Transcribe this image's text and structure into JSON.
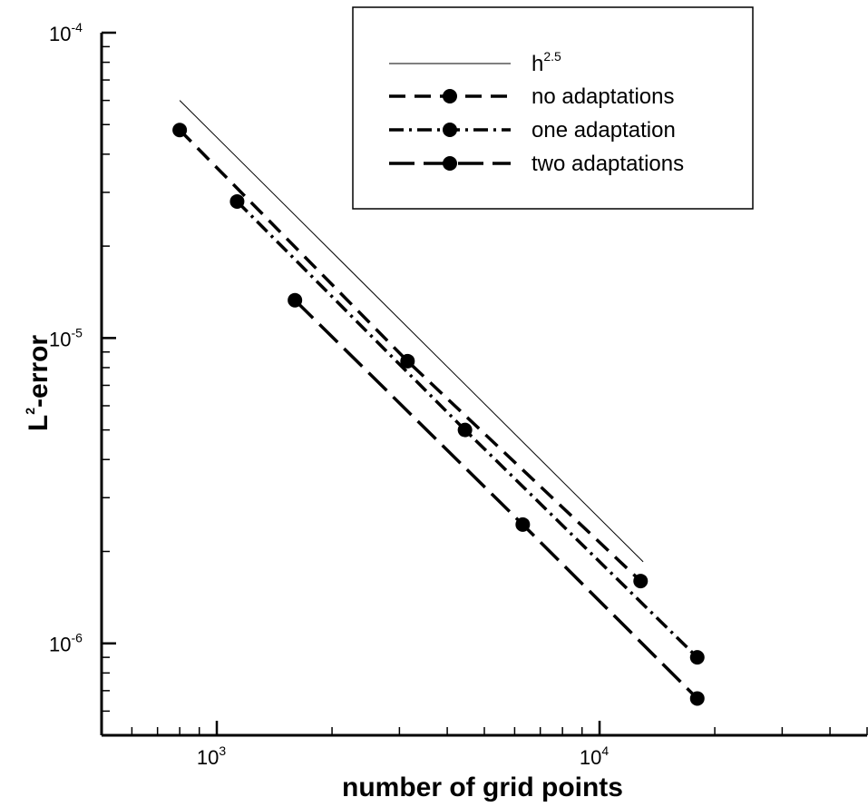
{
  "chart_data": {
    "type": "line",
    "x_scale": "log",
    "y_scale": "log",
    "xlim": [
      500,
      50000
    ],
    "ylim": [
      5e-07,
      0.0001
    ],
    "xlabel": {
      "base": "number of grid points"
    },
    "ylabel": {
      "base": "L",
      "sup": "2",
      "rest": "-error"
    },
    "x_ticks": [
      {
        "value": 1000,
        "base": "10",
        "exp": "3"
      },
      {
        "value": 10000,
        "base": "10",
        "exp": "4"
      }
    ],
    "y_ticks": [
      {
        "value": 0.0001,
        "base": "10",
        "exp": "-4"
      },
      {
        "value": 1e-05,
        "base": "10",
        "exp": "-5"
      },
      {
        "value": 1e-06,
        "base": "10",
        "exp": "-6"
      }
    ],
    "grid": false,
    "legend_position": "top-right",
    "reference_line": {
      "name": "h",
      "name_sup": "2.5",
      "x": [
        800,
        13000
      ],
      "y": [
        6e-05,
        1.85e-06
      ],
      "style": "solid"
    },
    "series": [
      {
        "name": "no adaptations",
        "style": "dashed",
        "x": [
          800,
          3150,
          12800
        ],
        "y": [
          4.8e-05,
          8.4e-06,
          1.6e-06
        ]
      },
      {
        "name": "one adaptation",
        "style": "dashdot",
        "x": [
          1130,
          4450,
          18000
        ],
        "y": [
          2.8e-05,
          5e-06,
          9e-07
        ]
      },
      {
        "name": "two adaptations",
        "style": "longdash",
        "x": [
          1600,
          6300,
          18000
        ],
        "y": [
          1.33e-05,
          2.45e-06,
          6.6e-07
        ]
      }
    ]
  }
}
